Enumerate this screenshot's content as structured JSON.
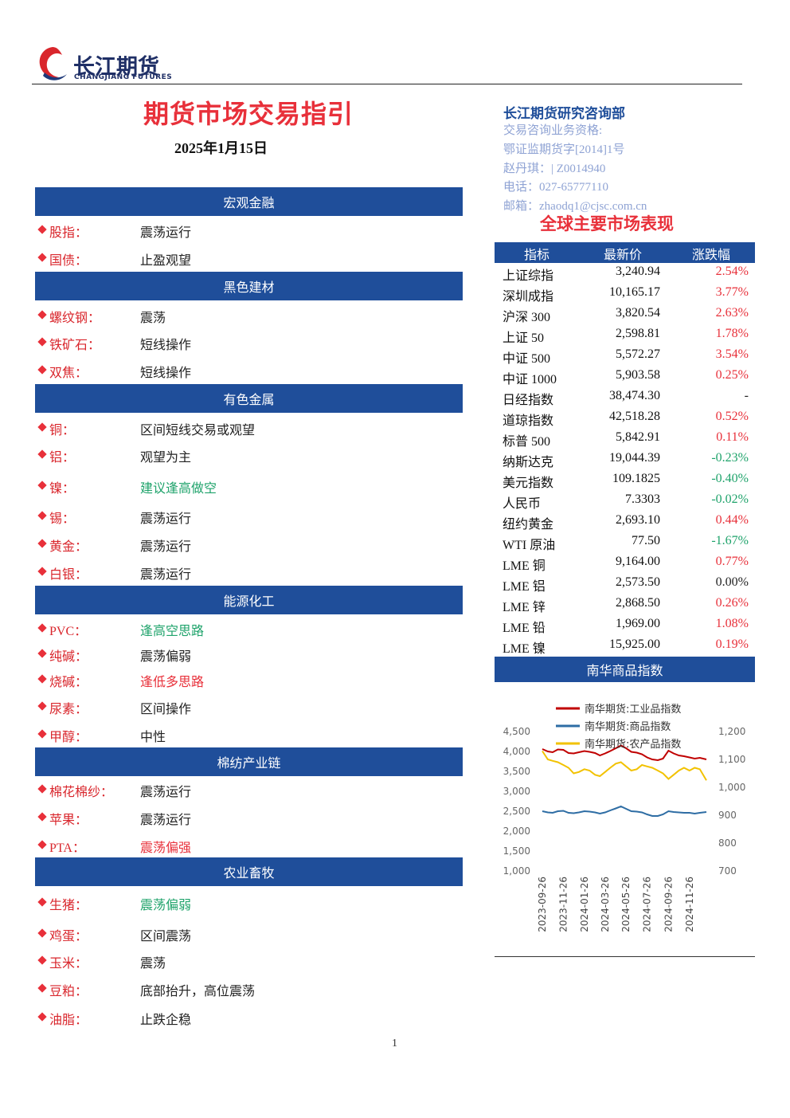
{
  "header": {
    "logo_cn": "长江期货",
    "logo_en": "CHANGJIANG FUTURES"
  },
  "title": "期货市场交易指引",
  "date": "2025年1月15日",
  "contact": {
    "dept": "长江期货研究咨询部",
    "lines": [
      "交易咨询业务资格:",
      "鄂证监期货字[2014]1号",
      "赵丹琪：| Z0014940",
      "电话：027-65777110",
      "邮箱：zhaodq1@cjsc.com.cn"
    ]
  },
  "sections": [
    {
      "title": "宏观金融",
      "items": [
        {
          "name": "股指：",
          "view": "震荡运行",
          "color": "#222222"
        },
        {
          "name": "国债：",
          "view": "止盈观望",
          "color": "#222222"
        }
      ]
    },
    {
      "title": "黑色建材",
      "items": [
        {
          "name": "螺纹钢：",
          "view": "震荡",
          "color": "#222222"
        },
        {
          "name": "铁矿石：",
          "view": "短线操作",
          "color": "#222222"
        },
        {
          "name": "双焦：",
          "view": "短线操作",
          "color": "#222222"
        }
      ]
    },
    {
      "title": "有色金属",
      "items": [
        {
          "name": "铜：",
          "view": "区间短线交易或观望",
          "color": "#222222"
        },
        {
          "name": "铝：",
          "view": "观望为主",
          "color": "#222222"
        },
        {
          "name": "镍：",
          "view": "建议逢高做空",
          "color": "#1fa36b"
        },
        {
          "name": "锡：",
          "view": "震荡运行",
          "color": "#222222"
        },
        {
          "name": "黄金：",
          "view": "震荡运行",
          "color": "#222222"
        },
        {
          "name": "白银：",
          "view": "震荡运行",
          "color": "#222222"
        }
      ]
    },
    {
      "title": "能源化工",
      "items": [
        {
          "name": "PVC：",
          "view": "逢高空思路",
          "color": "#1fa36b"
        },
        {
          "name": "纯碱：",
          "view": "震荡偏弱",
          "color": "#222222"
        },
        {
          "name": "烧碱：",
          "view": "逢低多思路",
          "color": "#e8303a"
        },
        {
          "name": "尿素：",
          "view": "区间操作",
          "color": "#222222"
        },
        {
          "name": "甲醇：",
          "view": "中性",
          "color": "#222222"
        }
      ]
    },
    {
      "title": "棉纺产业链",
      "items": [
        {
          "name": "棉花棉纱：",
          "view": "震荡运行",
          "color": "#222222"
        },
        {
          "name": "苹果：",
          "view": "震荡运行",
          "color": "#222222"
        },
        {
          "name": "PTA：",
          "view": "震荡偏强",
          "color": "#e8303a"
        }
      ]
    },
    {
      "title": "农业畜牧",
      "items": [
        {
          "name": "生猪：",
          "view": "震荡偏弱",
          "color": "#1fa36b"
        },
        {
          "name": "鸡蛋：",
          "view": "区间震荡",
          "color": "#222222"
        },
        {
          "name": "玉米：",
          "view": "震荡",
          "color": "#222222"
        },
        {
          "name": "豆粕：",
          "view": "底部抬升，高位震荡",
          "color": "#222222"
        },
        {
          "name": "油脂：",
          "view": "止跌企稳",
          "color": "#222222"
        }
      ]
    }
  ],
  "market": {
    "title": "全球主要市场表现",
    "headers": [
      "指标",
      "最新价",
      "涨跌幅"
    ],
    "rows": [
      {
        "name": "上证综指",
        "price": "3,240.94",
        "change": "2.54%",
        "color": "#e8303a"
      },
      {
        "name": "深圳成指",
        "price": "10,165.17",
        "change": "3.77%",
        "color": "#e8303a"
      },
      {
        "name": "沪深 300",
        "price": "3,820.54",
        "change": "2.63%",
        "color": "#e8303a"
      },
      {
        "name": "上证 50",
        "price": "2,598.81",
        "change": "1.78%",
        "color": "#e8303a"
      },
      {
        "name": "中证 500",
        "price": "5,572.27",
        "change": "3.54%",
        "color": "#e8303a"
      },
      {
        "name": "中证 1000",
        "price": "5,903.58",
        "change": "0.25%",
        "color": "#e8303a"
      },
      {
        "name": "日经指数",
        "price": "38,474.30",
        "change": "-",
        "color": "#222222"
      },
      {
        "name": "道琼指数",
        "price": "42,518.28",
        "change": "0.52%",
        "color": "#e8303a"
      },
      {
        "name": "标普 500",
        "price": "5,842.91",
        "change": "0.11%",
        "color": "#e8303a"
      },
      {
        "name": "纳斯达克",
        "price": "19,044.39",
        "change": "-0.23%",
        "color": "#1fa36b"
      },
      {
        "name": "美元指数",
        "price": "109.1825",
        "change": "-0.40%",
        "color": "#1fa36b"
      },
      {
        "name": "人民币",
        "price": "7.3303",
        "change": "-0.02%",
        "color": "#1fa36b"
      },
      {
        "name": "纽约黄金",
        "price": "2,693.10",
        "change": "0.44%",
        "color": "#e8303a"
      },
      {
        "name": "WTI 原油",
        "price": "77.50",
        "change": "-1.67%",
        "color": "#1fa36b"
      },
      {
        "name": "LME 铜",
        "price": "9,164.00",
        "change": "0.77%",
        "color": "#e8303a"
      },
      {
        "name": "LME 铝",
        "price": "2,573.50",
        "change": "0.00%",
        "color": "#222222"
      },
      {
        "name": "LME 锌",
        "price": "2,868.50",
        "change": "0.26%",
        "color": "#e8303a"
      },
      {
        "name": "LME 铅",
        "price": "1,969.00",
        "change": "1.08%",
        "color": "#e8303a"
      },
      {
        "name": "LME 镍",
        "price": "15,925.00",
        "change": "0.19%",
        "color": "#e8303a"
      }
    ]
  },
  "nanhua_title": "南华商品指数",
  "chart_data": {
    "type": "line",
    "x": [
      "2023-09-26",
      "2023-10-12",
      "2023-10-26",
      "2023-11-10",
      "2023-11-26",
      "2023-12-11",
      "2023-12-26",
      "2024-01-10",
      "2024-01-26",
      "2024-02-10",
      "2024-02-26",
      "2024-03-11",
      "2024-03-26",
      "2024-04-10",
      "2024-04-26",
      "2024-05-11",
      "2024-05-26",
      "2024-06-10",
      "2024-06-26",
      "2024-07-11",
      "2024-07-26",
      "2024-08-10",
      "2024-08-26",
      "2024-09-10",
      "2024-09-26",
      "2024-10-11",
      "2024-10-26",
      "2024-11-10",
      "2024-11-26",
      "2024-12-11",
      "2024-12-26",
      "2025-01-14"
    ],
    "xlim": [
      "2023-09-26",
      "2025-01-14"
    ],
    "xticks": [
      "2023-09-26",
      "2023-11-26",
      "2024-01-26",
      "2024-03-26",
      "2024-05-26",
      "2024-07-26",
      "2024-09-26",
      "2024-11-26"
    ],
    "ylim": [
      1000,
      4500
    ],
    "yticks": [
      {
        "value": 1000,
        "label": "1,000"
      },
      {
        "value": 1500,
        "label": "1,500"
      },
      {
        "value": 2000,
        "label": "2,000"
      },
      {
        "value": 2500,
        "label": "2,500"
      },
      {
        "value": 3000,
        "label": "3,000"
      },
      {
        "value": 3500,
        "label": "3,500"
      },
      {
        "value": 4000,
        "label": "4,000"
      },
      {
        "value": 4500,
        "label": "4,500"
      }
    ],
    "y2lim": [
      700,
      1200
    ],
    "y2ticks": [
      700,
      800,
      900,
      {
        "value": 1000,
        "label": "1,000"
      },
      {
        "value": 1100,
        "label": "1,100"
      },
      {
        "value": 1200,
        "label": "1,200"
      }
    ],
    "series": [
      {
        "name": "南华期货:工业品指数",
        "color": "#c00000",
        "values": [
          4060,
          4000,
          3980,
          4050,
          4040,
          3960,
          3950,
          3980,
          4010,
          3990,
          3960,
          3900,
          3950,
          4010,
          4080,
          4150,
          4080,
          3990,
          3970,
          3930,
          3850,
          3800,
          3780,
          3820,
          4020,
          3950,
          3900,
          3880,
          3850,
          3820,
          3840,
          3800
        ]
      },
      {
        "name": "南华期货:商品指数",
        "color": "#2e6da4",
        "values": [
          2500,
          2470,
          2460,
          2500,
          2510,
          2460,
          2450,
          2470,
          2500,
          2490,
          2470,
          2440,
          2470,
          2520,
          2570,
          2620,
          2560,
          2500,
          2490,
          2470,
          2420,
          2380,
          2380,
          2420,
          2500,
          2480,
          2470,
          2460,
          2460,
          2440,
          2460,
          2480
        ]
      },
      {
        "name": "南华期货:农产品指数",
        "color": "#f2c200",
        "axis": "y2",
        "values": [
          1130,
          1100,
          1095,
          1090,
          1080,
          1070,
          1050,
          1055,
          1065,
          1060,
          1045,
          1040,
          1055,
          1070,
          1085,
          1090,
          1075,
          1060,
          1065,
          1080,
          1075,
          1070,
          1060,
          1050,
          1030,
          1045,
          1060,
          1070,
          1060,
          1070,
          1065,
          1025
        ]
      }
    ]
  },
  "page_number": "1"
}
